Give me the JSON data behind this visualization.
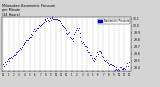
{
  "bg_color": "#d4d4d4",
  "plot_bg": "#ffffff",
  "dot_color": "#0000cc",
  "legend_color": "#0000cc",
  "ylim": [
    29.35,
    30.12
  ],
  "yticks": [
    29.4,
    29.5,
    29.6,
    29.7,
    29.8,
    29.9,
    30.0,
    30.1
  ],
  "ytick_labels": [
    "29.4",
    "29.5",
    "29.6",
    "29.7",
    "29.8",
    "29.9",
    "30.0",
    "30.1"
  ],
  "x_tick_labels": [
    "12",
    "1",
    "2",
    "3",
    "4",
    "5",
    "6",
    "7",
    "8",
    "9",
    "10",
    "11",
    "12",
    "1",
    "2",
    "3",
    "4",
    "5",
    "6",
    "7",
    "8",
    "9",
    "10",
    "11",
    "12"
  ],
  "title_line1": "Milwaukee Barometric Pressure",
  "title_line2": "per Minute",
  "title_line3": "(24 Hours)",
  "legend_label": "Barometric Pressure"
}
